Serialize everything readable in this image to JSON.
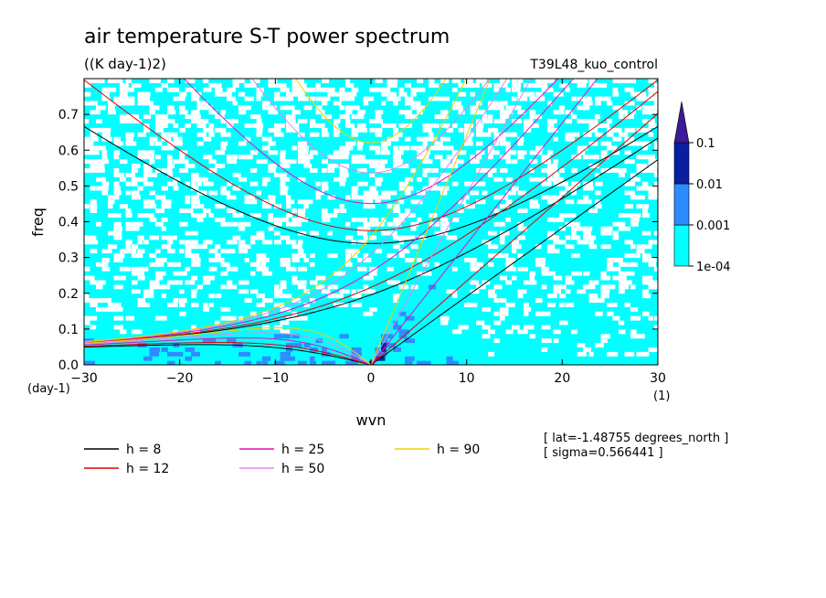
{
  "chart_data": {
    "type": "heatmap",
    "title": "air temperature S-T power spectrum",
    "units": "((K day-1)2)",
    "run": "T39L48_kuo_control",
    "xlabel": "wvn",
    "ylabel": "freq",
    "x_unit": "(1)",
    "y_unit": "(day-1)",
    "xlim": [
      -30,
      30
    ],
    "ylim": [
      0,
      0.8
    ],
    "x_ticks": [
      "-30",
      "-20",
      "-10",
      "0",
      "10",
      "20",
      "30"
    ],
    "y_ticks": [
      "0.0",
      "0.1",
      "0.2",
      "0.3",
      "0.4",
      "0.5",
      "0.6",
      "0.7"
    ],
    "color_scale": {
      "levels": [
        "1e-04",
        "0.001",
        "0.01",
        "0.1"
      ],
      "colors": [
        "#00ffff",
        "#2f8cff",
        "#0a1ea0",
        "#3c1b96"
      ]
    },
    "dispersion_curves": [
      {
        "label": "h =  8",
        "color": "#000000"
      },
      {
        "label": "h = 12",
        "color": "#e00000"
      },
      {
        "label": "h = 25",
        "color": "#e010c0"
      },
      {
        "label": "h = 50",
        "color": "#e08ae8"
      },
      {
        "label": "h = 90",
        "color": "#f0d000"
      }
    ],
    "footnotes": [
      "[ lat=-1.48755 degrees_north ]",
      "[ sigma=0.566441 ]"
    ]
  }
}
